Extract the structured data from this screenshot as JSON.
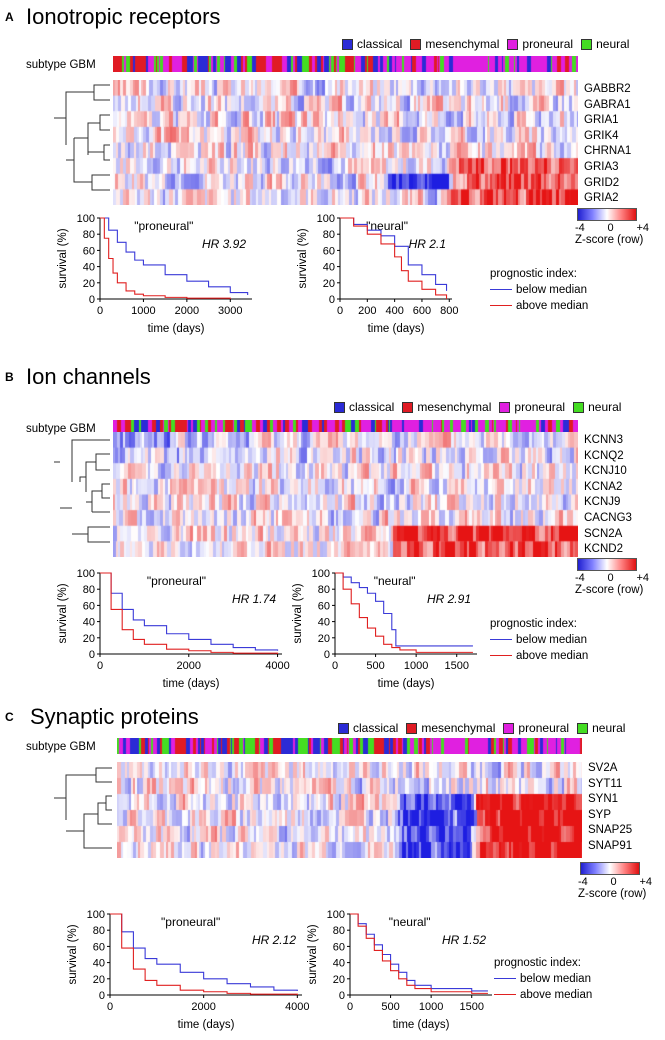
{
  "colors": {
    "classical": "#2b2bd6",
    "mesenchymal": "#e01b24",
    "proneural": "#e020e0",
    "neural": "#44dd22",
    "below": "#3a3ad8",
    "above": "#e02020"
  },
  "legend": {
    "classical": "classical",
    "mesenchymal": "mesenchymal",
    "proneural": "proneural",
    "neural": "neural"
  },
  "subtype_label": "subtype GBM",
  "zscore": {
    "min": "-4",
    "mid": "0",
    "max": "+4",
    "label": "Z-score (row)"
  },
  "prognostic": {
    "title": "prognostic index:",
    "below": "below median",
    "above": "above median"
  },
  "panels": [
    {
      "letter": "A",
      "title": "Ionotropic receptors",
      "genes": [
        "GABBR2",
        "GABRA1",
        "GRIA1",
        "GRIK4",
        "CHRNA1",
        "GRIA3",
        "GRID2",
        "GRIA2"
      ],
      "km": [
        {
          "label": "\"proneural\"",
          "hr": "HR 3.92",
          "xticks": [
            "0",
            "1000",
            "2000",
            "3000"
          ],
          "xmax": 3500
        },
        {
          "label": "\"neural\"",
          "hr": "HR 2.1",
          "xticks": [
            "0",
            "200",
            "400",
            "600",
            "800"
          ],
          "xmax": 820
        }
      ]
    },
    {
      "letter": "B",
      "title": "Ion channels",
      "genes": [
        "KCNN3",
        "KCNQ2",
        "KCNJ10",
        "KCNA2",
        "KCNJ9",
        "CACNG3",
        "SCN2A",
        "KCND2"
      ],
      "km": [
        {
          "label": "\"proneural\"",
          "hr": "HR 1.74",
          "xticks": [
            "0",
            "2000",
            "4000"
          ],
          "xmax": 4100
        },
        {
          "label": "\"neural\"",
          "hr": "HR 2.91",
          "xticks": [
            "0",
            "500",
            "1000",
            "1500"
          ],
          "xmax": 1750
        }
      ]
    },
    {
      "letter": "C",
      "title": "Synaptic proteins",
      "genes": [
        "SV2A",
        "SYT11",
        "SYN1",
        "SYP",
        "SNAP25",
        "SNAP91"
      ],
      "km": [
        {
          "label": "\"proneural\"",
          "hr": "HR 2.12",
          "xticks": [
            "0",
            "2000",
            "4000"
          ],
          "xmax": 4100
        },
        {
          "label": "\"neural\"",
          "hr": "HR 1.52",
          "xticks": [
            "0",
            "500",
            "1000",
            "1500"
          ],
          "xmax": 1750
        }
      ]
    }
  ],
  "axis": {
    "ylabel": "survival (%)",
    "xlabel": "time (days)",
    "yticks": [
      "0",
      "20",
      "40",
      "60",
      "80",
      "100"
    ]
  },
  "chart_data": [
    {
      "type": "line",
      "title": "\"proneural\" Ionotropic receptors",
      "xlabel": "time (days)",
      "ylabel": "survival (%)",
      "ylim": [
        0,
        100
      ],
      "series": [
        {
          "name": "below median",
          "x": [
            0,
            200,
            400,
            600,
            800,
            1000,
            1500,
            2000,
            2500,
            3000,
            3400
          ],
          "y": [
            100,
            85,
            70,
            58,
            48,
            42,
            30,
            22,
            15,
            8,
            5
          ]
        },
        {
          "name": "above median",
          "x": [
            0,
            100,
            200,
            300,
            400,
            600,
            800,
            1000,
            1500,
            2000,
            3000
          ],
          "y": [
            100,
            75,
            50,
            32,
            20,
            10,
            6,
            4,
            2,
            1,
            0
          ]
        }
      ]
    },
    {
      "type": "line",
      "title": "\"neural\" Ionotropic receptors",
      "xlabel": "time (days)",
      "ylabel": "survival (%)",
      "ylim": [
        0,
        100
      ],
      "series": [
        {
          "name": "below median",
          "x": [
            0,
            100,
            200,
            300,
            400,
            500,
            600,
            700,
            780
          ],
          "y": [
            100,
            92,
            85,
            78,
            65,
            42,
            30,
            18,
            10
          ]
        },
        {
          "name": "above median",
          "x": [
            0,
            100,
            200,
            300,
            400,
            450,
            500,
            600,
            700,
            780
          ],
          "y": [
            100,
            90,
            80,
            68,
            52,
            35,
            22,
            12,
            5,
            0
          ]
        }
      ]
    },
    {
      "type": "line",
      "title": "\"proneural\" Ion channels",
      "xlabel": "time (days)",
      "ylabel": "survival (%)",
      "ylim": [
        0,
        100
      ],
      "series": [
        {
          "name": "below median",
          "x": [
            0,
            250,
            500,
            750,
            1000,
            1500,
            2000,
            2500,
            3000,
            3500,
            4000
          ],
          "y": [
            100,
            75,
            55,
            42,
            35,
            25,
            18,
            12,
            8,
            5,
            4
          ]
        },
        {
          "name": "above median",
          "x": [
            0,
            250,
            500,
            750,
            1000,
            1500,
            2000,
            2500,
            3000,
            4000
          ],
          "y": [
            100,
            55,
            30,
            18,
            12,
            6,
            4,
            2,
            1,
            0
          ]
        }
      ]
    },
    {
      "type": "line",
      "title": "\"neural\" Ion channels",
      "xlabel": "time (days)",
      "ylabel": "survival (%)",
      "ylim": [
        0,
        100
      ],
      "series": [
        {
          "name": "below median",
          "x": [
            0,
            100,
            200,
            300,
            400,
            500,
            600,
            700,
            750,
            1000,
            1500,
            1700
          ],
          "y": [
            100,
            95,
            88,
            82,
            75,
            65,
            50,
            30,
            10,
            10,
            10,
            10
          ]
        },
        {
          "name": "above median",
          "x": [
            0,
            100,
            200,
            300,
            400,
            500,
            600,
            700,
            800,
            1000,
            1500,
            1700
          ],
          "y": [
            100,
            80,
            62,
            45,
            32,
            22,
            12,
            8,
            5,
            2,
            2,
            2
          ]
        }
      ]
    },
    {
      "type": "line",
      "title": "\"proneural\" Synaptic proteins",
      "xlabel": "time (days)",
      "ylabel": "survival (%)",
      "ylim": [
        0,
        100
      ],
      "series": [
        {
          "name": "below median",
          "x": [
            0,
            250,
            500,
            750,
            1000,
            1500,
            2000,
            2500,
            3000,
            3500,
            4000
          ],
          "y": [
            100,
            78,
            58,
            45,
            38,
            28,
            20,
            14,
            10,
            6,
            5
          ]
        },
        {
          "name": "above median",
          "x": [
            0,
            250,
            500,
            750,
            1000,
            1500,
            2000,
            2500,
            3000,
            4000
          ],
          "y": [
            100,
            58,
            32,
            18,
            12,
            6,
            4,
            2,
            1,
            0
          ]
        }
      ]
    },
    {
      "type": "line",
      "title": "\"neural\" Synaptic proteins",
      "xlabel": "time (days)",
      "ylabel": "survival (%)",
      "ylim": [
        0,
        100
      ],
      "series": [
        {
          "name": "below median",
          "x": [
            0,
            100,
            200,
            300,
            400,
            500,
            600,
            700,
            800,
            1000,
            1500,
            1700
          ],
          "y": [
            100,
            88,
            75,
            62,
            50,
            38,
            28,
            18,
            12,
            8,
            5,
            5
          ]
        },
        {
          "name": "above median",
          "x": [
            0,
            100,
            200,
            300,
            400,
            500,
            600,
            700,
            800,
            1000,
            1500,
            1700
          ],
          "y": [
            100,
            85,
            70,
            55,
            42,
            30,
            20,
            12,
            8,
            4,
            2,
            2
          ]
        }
      ]
    }
  ]
}
